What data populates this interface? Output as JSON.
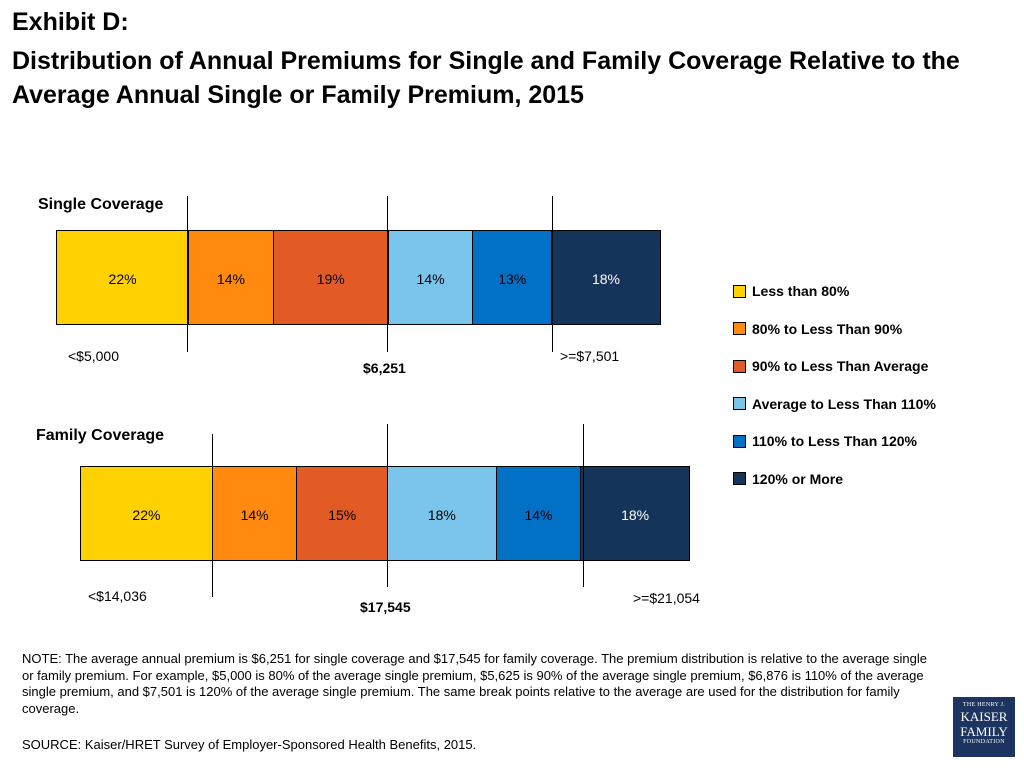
{
  "header": {
    "exhibit": "Exhibit D:",
    "title": "Distribution of Annual Premiums for Single and Family Coverage Relative to the Average Annual Single or Family Premium, 2015"
  },
  "colors": [
    "#ffd100",
    "#ff8a0f",
    "#e35b24",
    "#7bc4ec",
    "#0071c5",
    "#14345a"
  ],
  "legend": [
    "Less than 80%",
    "80% to Less Than 90%",
    "90% to Less Than Average",
    "Average to Less Than 110%",
    "110% to Less Than 120%",
    "120% or More"
  ],
  "chart_data": [
    {
      "type": "bar",
      "orientation": "horizontal-stacked",
      "title": "Single Coverage",
      "categories": [
        "Less than 80%",
        "80% to Less Than 90%",
        "90% to Less Than Average",
        "Average to Less Than 110%",
        "110% to Less Than 120%",
        "120% or More"
      ],
      "values": [
        22,
        14,
        19,
        14,
        13,
        18
      ],
      "value_labels": [
        "22%",
        "14%",
        "19%",
        "14%",
        "13%",
        "18%"
      ],
      "markers": {
        "low": "<$5,000",
        "average": "$6,251",
        "high": ">=$7,501"
      }
    },
    {
      "type": "bar",
      "orientation": "horizontal-stacked",
      "title": "Family Coverage",
      "categories": [
        "Less than 80%",
        "80% to Less Than 90%",
        "90% to Less Than Average",
        "Average to Less Than 110%",
        "110% to Less Than 120%",
        "120% or More"
      ],
      "values": [
        22,
        14,
        15,
        18,
        14,
        18
      ],
      "value_labels": [
        "22%",
        "14%",
        "15%",
        "18%",
        "14%",
        "18%"
      ],
      "markers": {
        "low": "<$14,036",
        "average": "$17,545",
        "high": ">=$21,054"
      }
    }
  ],
  "note": "NOTE: The average annual premium is $6,251 for single coverage and $17,545 for family coverage.  The premium distribution is relative to the average single or family premium.  For example, $5,000 is 80% of the average single premium, $5,625 is 90% of the average single premium, $6,876 is 110% of the average single premium, and $7,501 is 120% of the average single premium.  The same break points relative to the average are used for the distribution for family coverage.",
  "source": "SOURCE: Kaiser/HRET Survey of Employer-Sponsored Health Benefits, 2015.",
  "logo": {
    "line1": "THE HENRY J.",
    "line2": "KAISER",
    "line3": "FAMILY",
    "line4": "FOUNDATION"
  }
}
